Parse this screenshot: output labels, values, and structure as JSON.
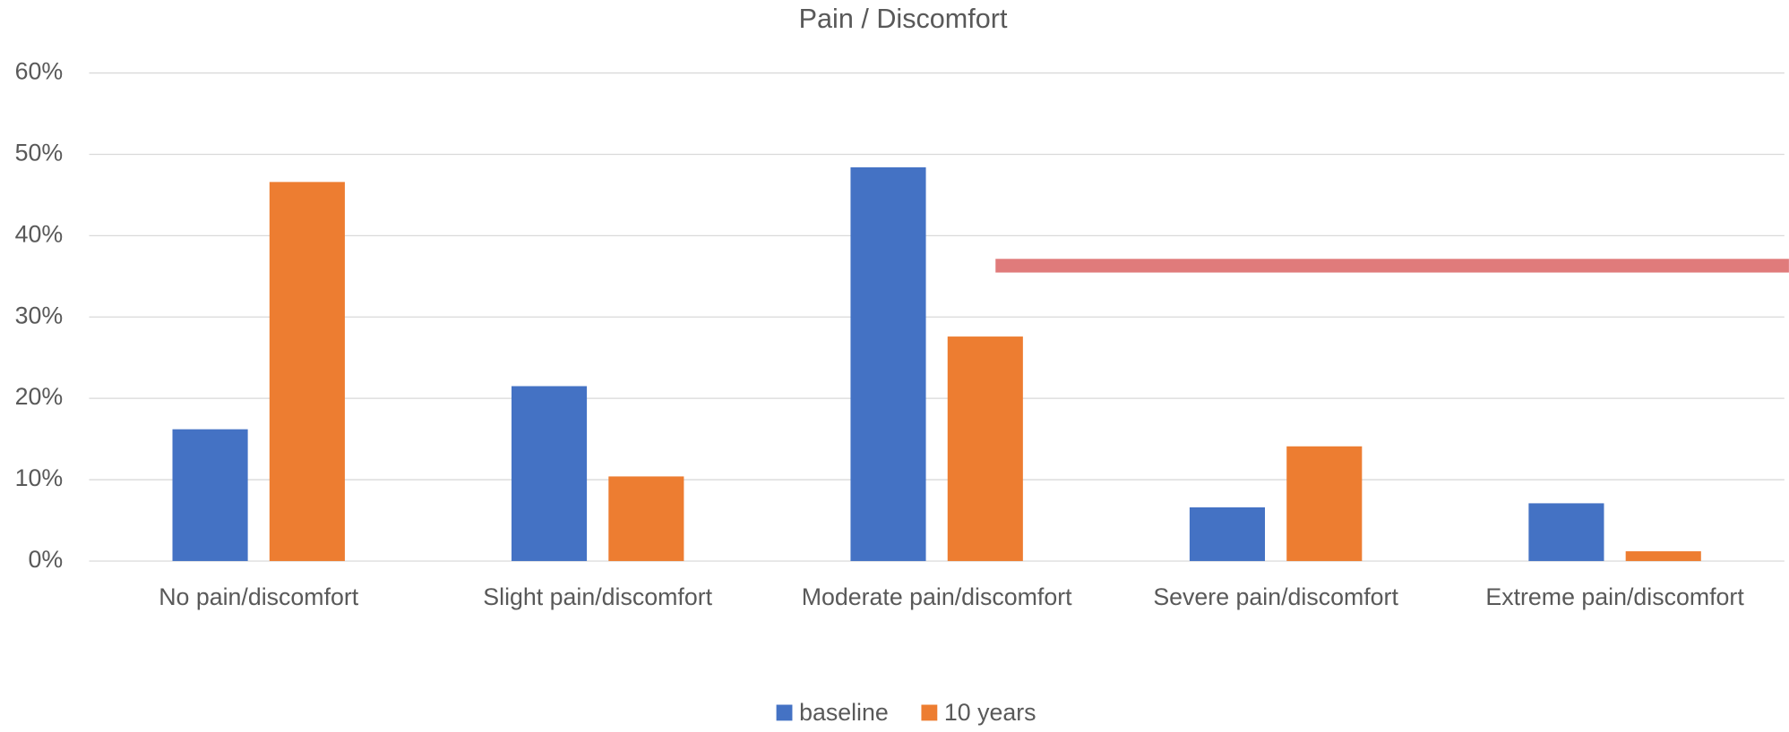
{
  "chart_data": {
    "type": "bar",
    "title": "Pain / Discomfort",
    "categories": [
      "No pain/discomfort",
      "Slight pain/discomfort",
      "Moderate pain/discomfort",
      "Severe pain/discomfort",
      "Extreme pain/discomfort"
    ],
    "series": [
      {
        "name": "baseline",
        "color": "#4472c4",
        "values": [
          16.2,
          21.5,
          48.4,
          6.6,
          7.1
        ]
      },
      {
        "name": "10 years",
        "color": "#ed7d31",
        "values": [
          46.6,
          10.4,
          27.6,
          14.1,
          1.2
        ]
      }
    ],
    "ylim": [
      0,
      60
    ],
    "yticks": [
      {
        "value": 0,
        "label": "0%"
      },
      {
        "value": 10,
        "label": "10%"
      },
      {
        "value": 20,
        "label": "20%"
      },
      {
        "value": 30,
        "label": "30%"
      },
      {
        "value": 40,
        "label": "40%"
      },
      {
        "value": 50,
        "label": "50%"
      },
      {
        "value": 60,
        "label": "60%"
      }
    ],
    "grid": true,
    "legend": "bottom"
  }
}
